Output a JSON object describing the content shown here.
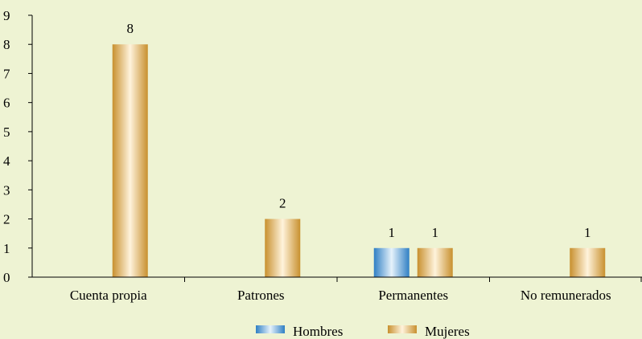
{
  "chart_data": {
    "type": "bar",
    "title": "",
    "xlabel": "",
    "ylabel": "",
    "categories": [
      "Cuenta propia",
      "Patrones",
      "Permanentes",
      "No remunerados"
    ],
    "series": [
      {
        "name": "Hombres",
        "values": [
          0,
          0,
          1,
          0
        ],
        "color": "#4a9ad8"
      },
      {
        "name": "Mujeres",
        "values": [
          8,
          2,
          1,
          1
        ],
        "color": "#d9a84e"
      }
    ],
    "ylim": [
      0,
      9
    ],
    "yticks": [
      0,
      1,
      2,
      3,
      4,
      5,
      6,
      7,
      8,
      9
    ],
    "grid": false,
    "legend_position": "bottom"
  },
  "colors": {
    "background": "#eef3d3",
    "hombres": "#4a9ad8",
    "mujeres": "#d9a84e",
    "axis": "#000000"
  }
}
